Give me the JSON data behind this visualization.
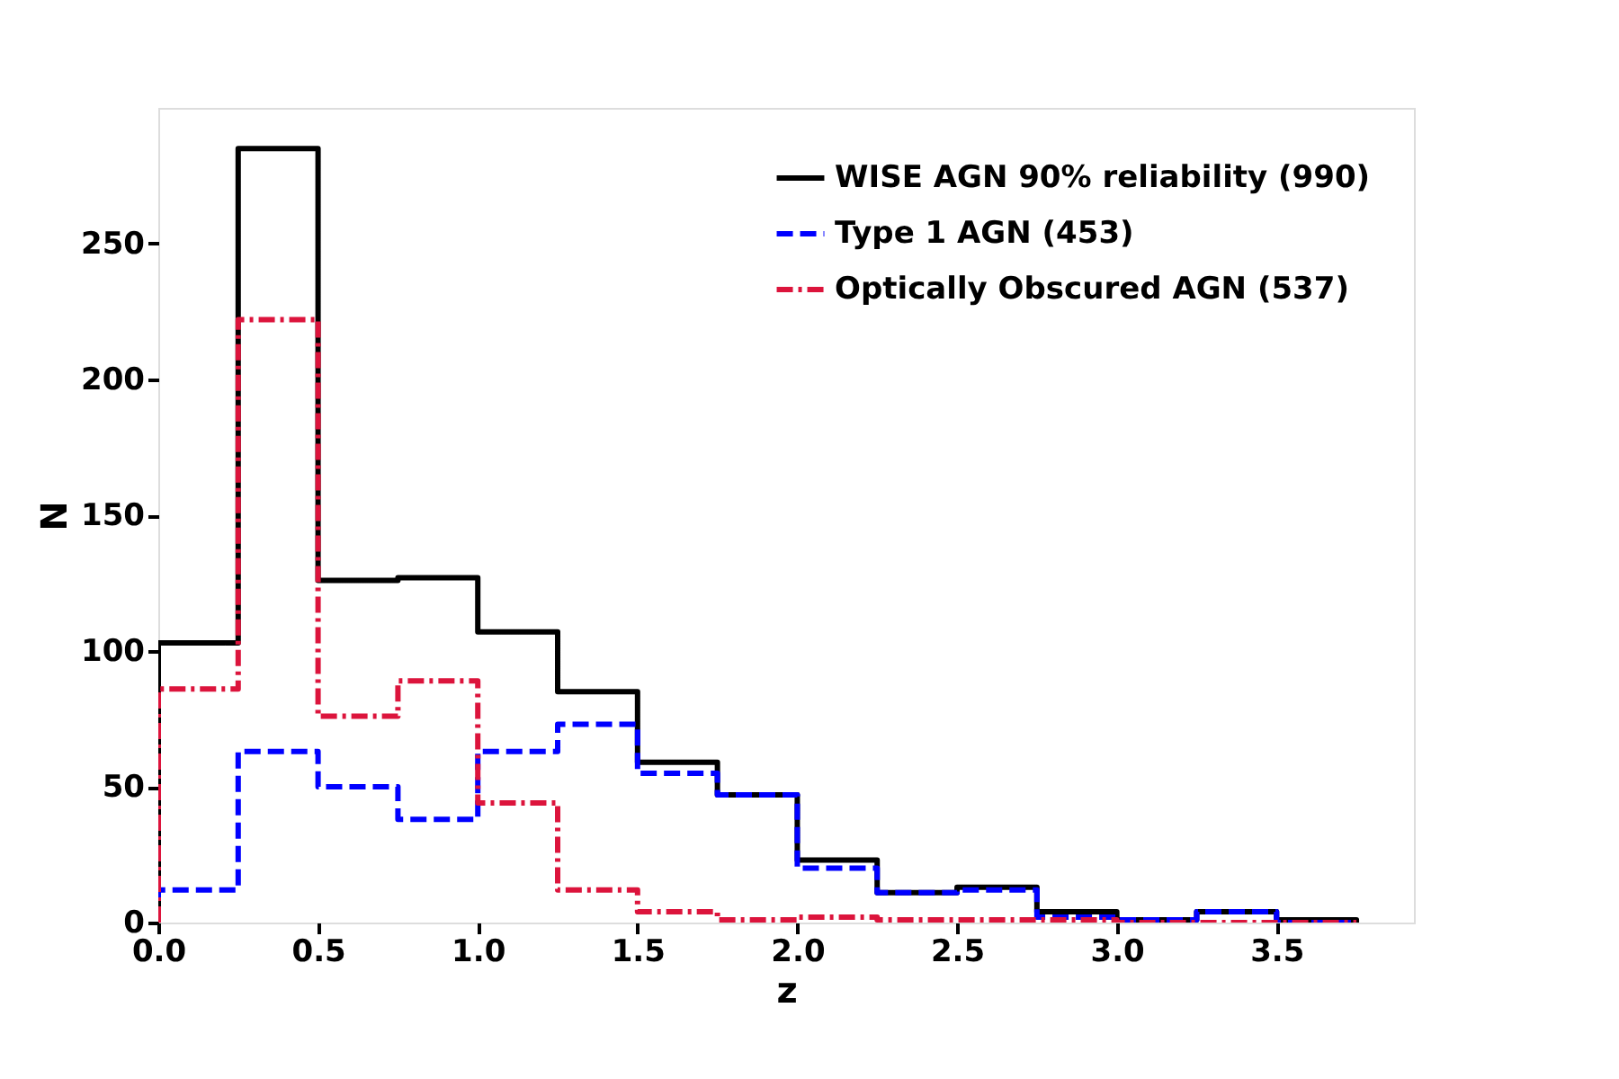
{
  "chart_data": {
    "type": "histogram",
    "xlabel": "z",
    "ylabel": "N",
    "bins": [
      0,
      0.25,
      0.5,
      0.75,
      1.0,
      1.25,
      1.5,
      1.75,
      2.0,
      2.25,
      2.5,
      2.75,
      3.0,
      3.25,
      3.5,
      3.75
    ],
    "series": [
      {
        "name": "WISE AGN 90% reliability (990)",
        "color": "#000000",
        "line_style": "solid",
        "values": [
          103,
          285,
          126,
          127,
          107,
          85,
          59,
          47,
          23,
          11,
          13,
          4,
          1,
          4,
          1
        ]
      },
      {
        "name": "Type 1 AGN (453)",
        "color": "#0000ff",
        "line_style": "dashed",
        "values": [
          12,
          63,
          50,
          38,
          63,
          73,
          55,
          47,
          20,
          11,
          12,
          2,
          1,
          4,
          0
        ]
      },
      {
        "name": "Optically Obscured AGN (537)",
        "color": "#dc143c",
        "line_style": "dashdot",
        "values": [
          86,
          222,
          76,
          89,
          44,
          12,
          4,
          1,
          2,
          1,
          1,
          1,
          0,
          0,
          0
        ]
      }
    ],
    "xlim": [
      0,
      3.93
    ],
    "ylim": [
      0,
      300
    ],
    "xticks": [
      {
        "value": 0,
        "label": "0.0"
      },
      0.5,
      {
        "value": 1,
        "label": "1.0"
      },
      1.5,
      {
        "value": 2,
        "label": "2.0"
      },
      2.5,
      {
        "value": 3,
        "label": "3.0"
      },
      3.5
    ],
    "yticks": [
      0,
      50,
      100,
      150,
      200,
      250
    ],
    "grid": false,
    "legend": "top right"
  }
}
